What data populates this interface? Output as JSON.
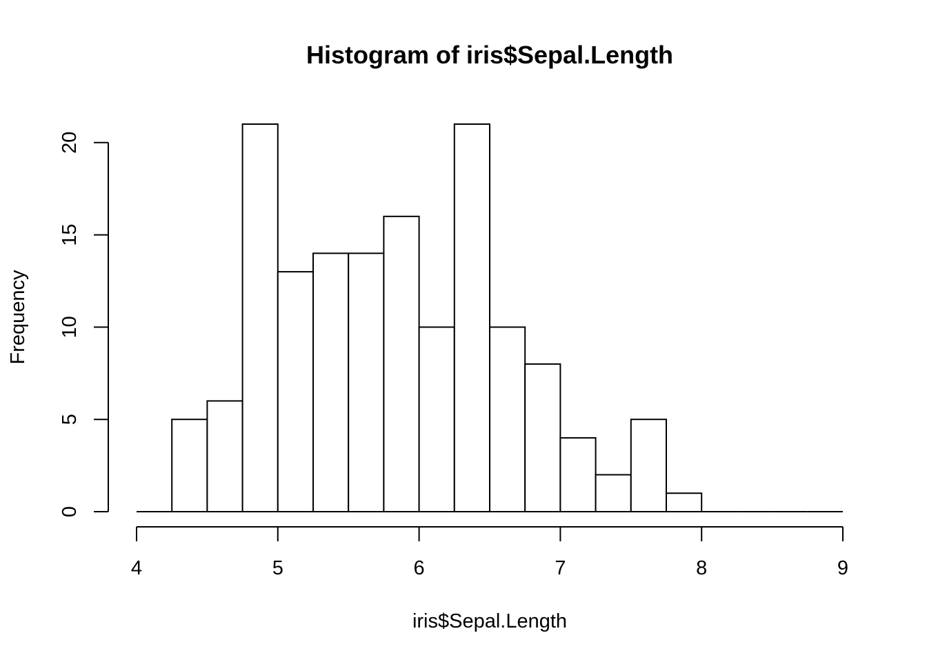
{
  "chart_data": {
    "type": "bar",
    "title": "Histogram of iris$Sepal.Length",
    "xlabel": "iris$Sepal.Length",
    "ylabel": "Frequency",
    "bin_edges": [
      4.0,
      4.25,
      4.5,
      4.75,
      5.0,
      5.25,
      5.5,
      5.75,
      6.0,
      6.25,
      6.5,
      6.75,
      7.0,
      7.25,
      7.5,
      7.75,
      8.0,
      8.25,
      8.5,
      8.75,
      9.0
    ],
    "values": [
      0,
      5,
      6,
      21,
      13,
      14,
      14,
      16,
      10,
      21,
      10,
      8,
      4,
      2,
      5,
      1,
      0,
      0,
      0,
      0
    ],
    "xlim": [
      4,
      9
    ],
    "ylim": [
      0,
      21
    ],
    "x_ticks": [
      "4",
      "5",
      "6",
      "7",
      "8",
      "9"
    ],
    "y_ticks": [
      "0",
      "5",
      "10",
      "15",
      "20"
    ],
    "grid": false,
    "legend": "none",
    "colors": {
      "bar_fill": "#ffffff",
      "bar_stroke": "#000000"
    }
  }
}
